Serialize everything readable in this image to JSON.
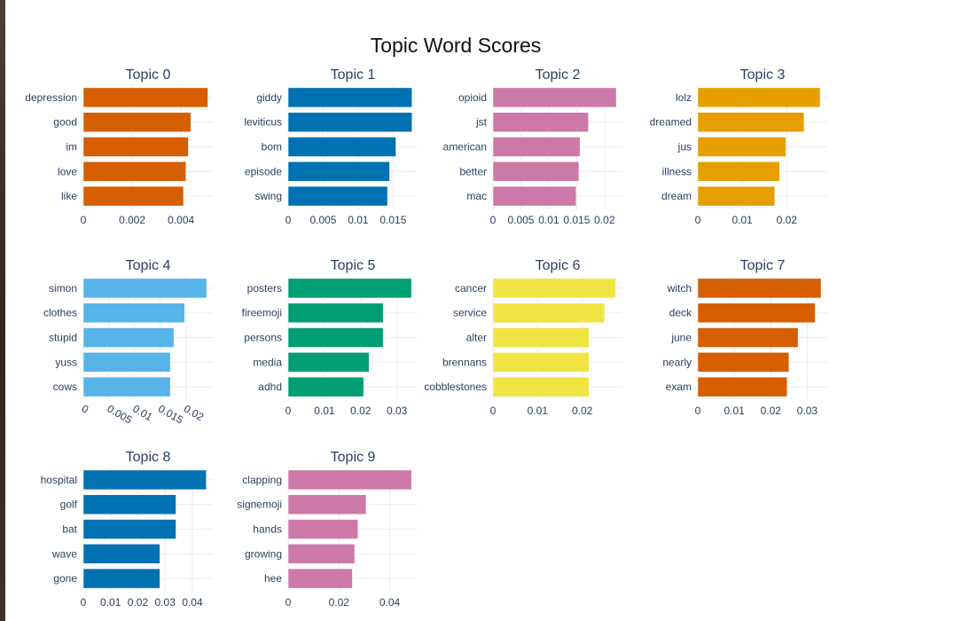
{
  "title": "Topic Word Scores",
  "chart_data": [
    {
      "type": "bar",
      "orientation": "horizontal",
      "title": "Topic 0",
      "color": "#D55E00",
      "categories": [
        "depression",
        "good",
        "im",
        "love",
        "like"
      ],
      "values": [
        0.0051,
        0.0044,
        0.0043,
        0.0042,
        0.0041
      ],
      "xlim": [
        0,
        0.0053
      ],
      "xticks": [
        0,
        0.002,
        0.004
      ],
      "xtick_labels": [
        "0",
        "0.002",
        "0.004"
      ]
    },
    {
      "type": "bar",
      "orientation": "horizontal",
      "title": "Topic 1",
      "color": "#0072B2",
      "categories": [
        "giddy",
        "leviticus",
        "bom",
        "episode",
        "swing"
      ],
      "values": [
        0.0177,
        0.0177,
        0.0154,
        0.0145,
        0.0142
      ],
      "xlim": [
        0,
        0.0185
      ],
      "xticks": [
        0,
        0.005,
        0.01,
        0.015
      ],
      "xtick_labels": [
        "0",
        "0.005",
        "0.01",
        "0.015"
      ]
    },
    {
      "type": "bar",
      "orientation": "horizontal",
      "title": "Topic 2",
      "color": "#CC79A7",
      "categories": [
        "opioid",
        "jst",
        "american",
        "better",
        "mac"
      ],
      "values": [
        0.0221,
        0.0171,
        0.0156,
        0.0154,
        0.0149
      ],
      "xlim": [
        0,
        0.0232
      ],
      "xticks": [
        0,
        0.005,
        0.01,
        0.015,
        0.02
      ],
      "xtick_labels": [
        "0",
        "0.005",
        "0.01",
        "0.015",
        "0.02"
      ]
    },
    {
      "type": "bar",
      "orientation": "horizontal",
      "title": "Topic 3",
      "color": "#E69F00",
      "categories": [
        "lolz",
        "dreamed",
        "jus",
        "illness",
        "dream"
      ],
      "values": [
        0.0275,
        0.0239,
        0.0198,
        0.0184,
        0.0173
      ],
      "xlim": [
        0,
        0.0291
      ],
      "xticks": [
        0,
        0.01,
        0.02
      ],
      "xtick_labels": [
        "0",
        "0.01",
        "0.02"
      ]
    },
    {
      "type": "bar",
      "orientation": "horizontal",
      "title": "Topic 4",
      "color": "#56B4E9",
      "categories": [
        "simon",
        "clothes",
        "stupid",
        "yuss",
        "cows"
      ],
      "values": [
        0.0241,
        0.0198,
        0.0177,
        0.017,
        0.017
      ],
      "xlim": [
        0,
        0.0253
      ],
      "xticks": [
        0,
        0.005,
        0.01,
        0.015,
        0.02
      ],
      "xtick_labels": [
        "0",
        "0.005",
        "0.01",
        "0.015",
        "0.02"
      ],
      "tick_rotation": 30
    },
    {
      "type": "bar",
      "orientation": "horizontal",
      "title": "Topic 5",
      "color": "#009E73",
      "categories": [
        "posters",
        "fireemoji",
        "persons",
        "media",
        "adhd"
      ],
      "values": [
        0.034,
        0.0262,
        0.0262,
        0.0223,
        0.0208
      ],
      "xlim": [
        0,
        0.0357
      ],
      "xticks": [
        0,
        0.01,
        0.02,
        0.03
      ],
      "xtick_labels": [
        "0",
        "0.01",
        "0.02",
        "0.03"
      ]
    },
    {
      "type": "bar",
      "orientation": "horizontal",
      "title": "Topic 6",
      "color": "#F0E442",
      "categories": [
        "cancer",
        "service",
        "alter",
        "brennans",
        "cobblestones"
      ],
      "values": [
        0.0275,
        0.025,
        0.0215,
        0.0215,
        0.0215
      ],
      "xlim": [
        0,
        0.029
      ],
      "xticks": [
        0,
        0.01,
        0.02
      ],
      "xtick_labels": [
        "0",
        "0.01",
        "0.02"
      ]
    },
    {
      "type": "bar",
      "orientation": "horizontal",
      "title": "Topic 7",
      "color": "#D55E00",
      "categories": [
        "witch",
        "deck",
        "june",
        "nearly",
        "exam"
      ],
      "values": [
        0.0338,
        0.0322,
        0.0275,
        0.025,
        0.0245
      ],
      "xlim": [
        0,
        0.0355
      ],
      "xticks": [
        0,
        0.01,
        0.02,
        0.03
      ],
      "xtick_labels": [
        "0",
        "0.01",
        "0.02",
        "0.03"
      ]
    },
    {
      "type": "bar",
      "orientation": "horizontal",
      "title": "Topic 8",
      "color": "#0072B2",
      "categories": [
        "hospital",
        "golf",
        "bat",
        "wave",
        "gone"
      ],
      "values": [
        0.0451,
        0.034,
        0.034,
        0.0281,
        0.0281
      ],
      "xlim": [
        0,
        0.0475
      ],
      "xticks": [
        0,
        0.01,
        0.02,
        0.03,
        0.04
      ],
      "xtick_labels": [
        "0",
        "0.01",
        "0.02",
        "0.03",
        "0.04"
      ]
    },
    {
      "type": "bar",
      "orientation": "horizontal",
      "title": "Topic 9",
      "color": "#CC79A7",
      "categories": [
        "clapping",
        "signemoji",
        "hands",
        "growing",
        "hee"
      ],
      "values": [
        0.0486,
        0.0307,
        0.0275,
        0.0262,
        0.0253
      ],
      "xlim": [
        0,
        0.051
      ],
      "xticks": [
        0,
        0.02,
        0.04
      ],
      "xtick_labels": [
        "0",
        "0.02",
        "0.04"
      ]
    }
  ]
}
